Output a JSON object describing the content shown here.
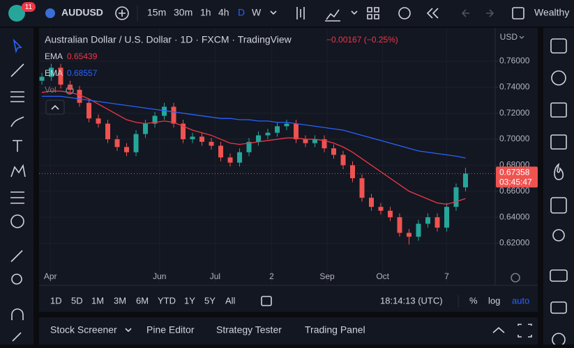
{
  "top_bar": {
    "badge": "11",
    "symbol": "AUDUSD",
    "intervals": [
      "15m",
      "30m",
      "1h",
      "4h",
      "D",
      "W"
    ],
    "account": "Wealthy"
  },
  "chart_header": {
    "title": "Australian Dollar / U.S. Dollar · 1D · FXCM · TradingView",
    "change": "−0.00167 (−0.25%)",
    "vol": "Vol",
    "currency": "USD"
  },
  "chart_data": {
    "type": "candlestick",
    "x": [
      0,
      1,
      2,
      3,
      4,
      5,
      6,
      7,
      8,
      9,
      10,
      11,
      12,
      13,
      14,
      15,
      16,
      17,
      18,
      19,
      20,
      21,
      22,
      23,
      24,
      25,
      26,
      27,
      28,
      29,
      30,
      31,
      32,
      33,
      34,
      35,
      36,
      37,
      38,
      39,
      40,
      41,
      42,
      43,
      44,
      45
    ],
    "open": [
      0.745,
      0.748,
      0.755,
      0.742,
      0.738,
      0.728,
      0.716,
      0.712,
      0.7,
      0.694,
      0.69,
      0.704,
      0.712,
      0.718,
      0.725,
      0.712,
      0.7,
      0.702,
      0.698,
      0.695,
      0.686,
      0.682,
      0.69,
      0.698,
      0.703,
      0.705,
      0.71,
      0.712,
      0.7,
      0.697,
      0.7,
      0.693,
      0.688,
      0.68,
      0.67,
      0.655,
      0.648,
      0.645,
      0.64,
      0.628,
      0.625,
      0.635,
      0.64,
      0.632,
      0.648,
      0.663
    ],
    "high": [
      0.751,
      0.758,
      0.758,
      0.745,
      0.741,
      0.731,
      0.719,
      0.715,
      0.703,
      0.697,
      0.707,
      0.715,
      0.721,
      0.728,
      0.728,
      0.715,
      0.705,
      0.705,
      0.701,
      0.698,
      0.689,
      0.693,
      0.701,
      0.706,
      0.708,
      0.713,
      0.715,
      0.715,
      0.703,
      0.703,
      0.703,
      0.696,
      0.691,
      0.683,
      0.673,
      0.658,
      0.651,
      0.648,
      0.643,
      0.631,
      0.638,
      0.643,
      0.643,
      0.651,
      0.666,
      0.678
    ],
    "low": [
      0.742,
      0.745,
      0.739,
      0.735,
      0.725,
      0.713,
      0.709,
      0.697,
      0.691,
      0.687,
      0.687,
      0.701,
      0.709,
      0.715,
      0.709,
      0.697,
      0.697,
      0.695,
      0.692,
      0.683,
      0.679,
      0.679,
      0.687,
      0.695,
      0.7,
      0.702,
      0.707,
      0.697,
      0.694,
      0.694,
      0.69,
      0.685,
      0.677,
      0.667,
      0.652,
      0.645,
      0.642,
      0.637,
      0.625,
      0.619,
      0.622,
      0.632,
      0.629,
      0.629,
      0.645,
      0.66
    ],
    "close": [
      0.748,
      0.755,
      0.742,
      0.738,
      0.728,
      0.716,
      0.712,
      0.7,
      0.694,
      0.69,
      0.704,
      0.712,
      0.718,
      0.725,
      0.712,
      0.7,
      0.702,
      0.698,
      0.695,
      0.686,
      0.682,
      0.69,
      0.698,
      0.703,
      0.705,
      0.71,
      0.712,
      0.7,
      0.697,
      0.7,
      0.693,
      0.688,
      0.68,
      0.67,
      0.655,
      0.648,
      0.645,
      0.64,
      0.628,
      0.625,
      0.635,
      0.64,
      0.632,
      0.648,
      0.663,
      0.6736
    ],
    "up_color": "#26a69a",
    "down_color": "#ef5350",
    "series": [
      {
        "name": "EMA",
        "last_label": "0.65439",
        "color": "#f23645",
        "values": [
          0.736,
          0.737,
          0.737,
          0.736,
          0.734,
          0.731,
          0.727,
          0.723,
          0.719,
          0.715,
          0.713,
          0.712,
          0.713,
          0.714,
          0.713,
          0.71,
          0.707,
          0.705,
          0.703,
          0.7,
          0.697,
          0.696,
          0.697,
          0.698,
          0.699,
          0.7,
          0.701,
          0.701,
          0.7,
          0.7,
          0.699,
          0.697,
          0.694,
          0.69,
          0.685,
          0.68,
          0.675,
          0.67,
          0.665,
          0.66,
          0.657,
          0.654,
          0.651,
          0.65,
          0.652,
          0.6544
        ]
      },
      {
        "name": "EMA",
        "last_label": "0.68557",
        "color": "#2962ff",
        "values": [
          0.733,
          0.733,
          0.733,
          0.732,
          0.731,
          0.73,
          0.729,
          0.728,
          0.727,
          0.726,
          0.725,
          0.724,
          0.723,
          0.722,
          0.721,
          0.72,
          0.719,
          0.718,
          0.717,
          0.716,
          0.716,
          0.715,
          0.715,
          0.714,
          0.714,
          0.713,
          0.713,
          0.712,
          0.711,
          0.71,
          0.709,
          0.708,
          0.707,
          0.705,
          0.703,
          0.701,
          0.699,
          0.697,
          0.695,
          0.693,
          0.691,
          0.69,
          0.689,
          0.688,
          0.687,
          0.6856
        ]
      }
    ],
    "last_price": 0.67358,
    "countdown": "03:45:47",
    "xlim": [
      -0.3,
      48.15
    ],
    "xticks": [
      {
        "value": 0.9,
        "label": "Apr"
      },
      {
        "value": 12.5,
        "label": "Jun"
      },
      {
        "value": 18.4,
        "label": "Jul"
      },
      {
        "value": 24.4,
        "label": "2"
      },
      {
        "value": 30.3,
        "label": "Sep"
      },
      {
        "value": 36.2,
        "label": "Oct"
      },
      {
        "value": 43.0,
        "label": "7"
      }
    ],
    "ylim": [
      0.601,
      0.783
    ],
    "yticks": [
      {
        "value": 0.62,
        "label": "0.62000"
      },
      {
        "value": 0.64,
        "label": "0.64000"
      },
      {
        "value": 0.66,
        "label": "0.66000"
      },
      {
        "value": 0.68,
        "label": "0.68000"
      },
      {
        "value": 0.7,
        "label": "0.70000"
      },
      {
        "value": 0.72,
        "label": "0.72000"
      },
      {
        "value": 0.74,
        "label": "0.74000"
      },
      {
        "value": 0.76,
        "label": "0.76000"
      }
    ]
  },
  "range_bar": {
    "ranges": [
      "1D",
      "5D",
      "1M",
      "3M",
      "6M",
      "YTD",
      "1Y",
      "5Y",
      "All"
    ],
    "clock": "18:14:13 (UTC)",
    "percent": "%",
    "log": "log",
    "auto": "auto"
  },
  "bottom_panel": {
    "tabs": [
      "Stock Screener",
      "Pine Editor",
      "Strategy Tester",
      "Trading Panel"
    ]
  }
}
